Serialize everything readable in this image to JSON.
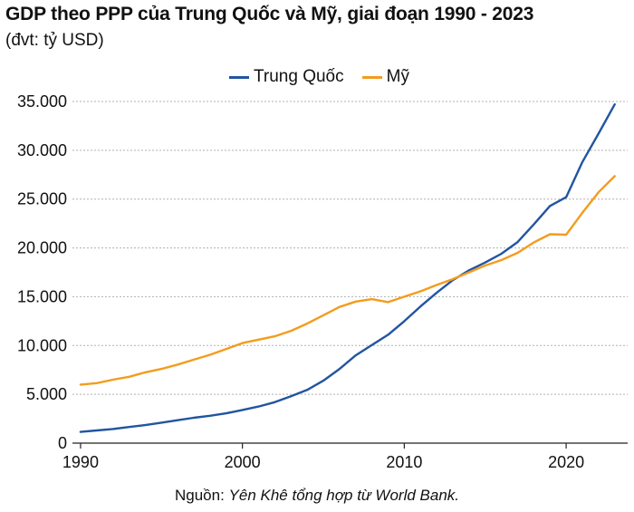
{
  "header": {
    "title": "GDP theo PPP của Trung Quốc và Mỹ, giai đoạn 1990 - 2023",
    "subtitle": "(đvt: tỷ USD)"
  },
  "footer": {
    "source_prefix": "Nguồn: ",
    "source_name": "Yên Khê tổng hợp từ World Bank."
  },
  "colors": {
    "china": "#2155a0",
    "usa": "#f39c1e",
    "grid": "#b0b0b0"
  },
  "chart_data": {
    "type": "line",
    "title": "GDP theo PPP của Trung Quốc và Mỹ, giai đoạn 1990 - 2023",
    "xlabel": "",
    "ylabel": "(đvt: tỷ USD)",
    "x": [
      1990,
      1991,
      1992,
      1993,
      1994,
      1995,
      1996,
      1997,
      1998,
      1999,
      2000,
      2001,
      2002,
      2003,
      2004,
      2005,
      2006,
      2007,
      2008,
      2009,
      2010,
      2011,
      2012,
      2013,
      2014,
      2015,
      2016,
      2017,
      2018,
      2019,
      2020,
      2021,
      2022,
      2023
    ],
    "xlim": [
      1989.5,
      2023.8
    ],
    "ylim": [
      0,
      35000
    ],
    "x_ticks": [
      1990,
      2000,
      2010,
      2020
    ],
    "x_tick_labels": [
      "1990",
      "2000",
      "2010",
      "2020"
    ],
    "y_ticks": [
      0,
      5000,
      10000,
      15000,
      20000,
      25000,
      30000,
      35000
    ],
    "y_tick_labels": [
      "0",
      "5.000",
      "10.000",
      "15.000",
      "20.000",
      "25.000",
      "30.000",
      "35.000"
    ],
    "grid": true,
    "legend_position": "top-center",
    "series": [
      {
        "name": "Trung Quốc",
        "values": [
          1150,
          1300,
          1450,
          1650,
          1850,
          2100,
          2350,
          2600,
          2800,
          3050,
          3400,
          3750,
          4200,
          4800,
          5450,
          6400,
          7600,
          9000,
          10050,
          11100,
          12500,
          14000,
          15400,
          16700,
          17700,
          18500,
          19400,
          20600,
          22400,
          24300,
          25200,
          28800,
          31700,
          34700
        ]
      },
      {
        "name": "Mỹ",
        "values": [
          6000,
          6150,
          6500,
          6800,
          7250,
          7600,
          8050,
          8550,
          9050,
          9650,
          10250,
          10600,
          10950,
          11500,
          12250,
          13100,
          13950,
          14500,
          14750,
          14450,
          15000,
          15550,
          16200,
          16800,
          17500,
          18200,
          18750,
          19500,
          20550,
          21400,
          21350,
          23600,
          25700,
          27350
        ]
      }
    ]
  }
}
